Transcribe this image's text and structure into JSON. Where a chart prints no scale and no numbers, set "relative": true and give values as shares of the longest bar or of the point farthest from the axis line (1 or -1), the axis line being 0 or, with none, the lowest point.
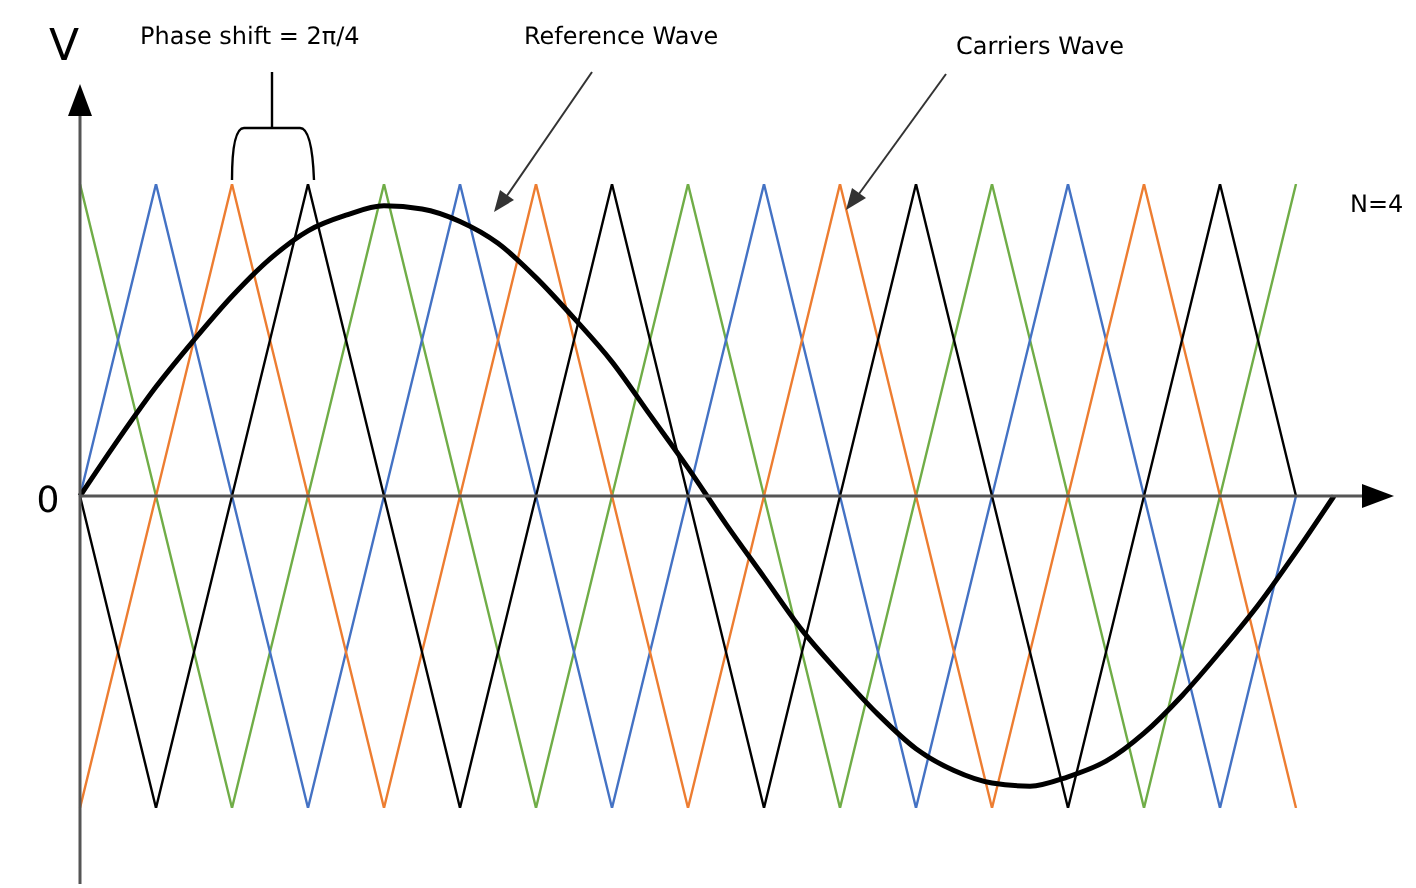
{
  "chart_data": {
    "type": "line",
    "relative": true,
    "ylabel": "V",
    "annotations": [
      "Phase shift = 2π/4",
      "Reference Wave",
      "Carriers Wave",
      "N=4",
      "0"
    ],
    "categories": [
      null,
      null,
      null,
      null,
      null,
      null,
      null,
      null,
      null,
      null,
      null,
      null,
      null,
      null,
      null,
      null,
      null,
      null,
      null,
      null,
      null,
      null,
      null,
      null,
      null,
      null,
      null,
      null,
      null,
      null,
      null,
      null,
      null,
      null
    ],
    "marker": "none",
    "line_style": "solid",
    "series": [
      {
        "color": "#70ad47",
        "values": [
          1,
          0.5,
          0,
          -0.5,
          -1,
          -0.5,
          0,
          0.5,
          1,
          0.5,
          0,
          -0.5,
          -1,
          -0.5,
          0,
          0.5,
          1,
          0.5,
          0,
          -0.5,
          -1,
          -0.5,
          0,
          0.5,
          1,
          0.5,
          0,
          -0.5,
          -1,
          -0.5,
          0,
          0.5,
          1,
          null
        ]
      },
      {
        "color": "#4472c4",
        "values": [
          0,
          0.5,
          1,
          0.5,
          0,
          -0.5,
          -1,
          -0.5,
          0,
          0.5,
          1,
          0.5,
          0,
          -0.5,
          -1,
          -0.5,
          0,
          0.5,
          1,
          0.5,
          0,
          -0.5,
          -1,
          -0.5,
          0,
          0.5,
          1,
          0.5,
          0,
          -0.5,
          -1,
          -0.5,
          0,
          null
        ]
      },
      {
        "color": "#ed7d31",
        "values": [
          -1,
          -0.5,
          0,
          0.5,
          1,
          0.5,
          0,
          -0.5,
          -1,
          -0.5,
          0,
          0.5,
          1,
          0.5,
          0,
          -0.5,
          -1,
          -0.5,
          0,
          0.5,
          1,
          0.5,
          0,
          -0.5,
          -1,
          -0.5,
          0,
          0.5,
          1,
          0.5,
          0,
          -0.5,
          -1,
          null
        ]
      },
      {
        "color": "#000000",
        "values": [
          0,
          -0.5,
          -1,
          -0.5,
          0,
          0.5,
          1,
          0.5,
          0,
          -0.5,
          -1,
          -0.5,
          0,
          0.5,
          1,
          0.5,
          0,
          -0.5,
          -1,
          -0.5,
          0,
          0.5,
          1,
          0.5,
          0,
          -0.5,
          -1,
          -0.5,
          0,
          0.5,
          1,
          0.5,
          0,
          null
        ]
      },
      {
        "color": "#000000",
        "values": [
          0,
          0.18,
          0.35,
          0.5,
          0.64,
          0.76,
          0.85,
          0.9,
          0.93,
          0.92,
          0.88,
          0.81,
          0.7,
          0.57,
          0.43,
          0.26,
          0.09,
          -0.09,
          -0.26,
          -0.43,
          -0.57,
          -0.7,
          -0.81,
          -0.88,
          -0.92,
          -0.93,
          -0.9,
          -0.85,
          -0.76,
          -0.64,
          -0.5,
          -0.35,
          -0.18,
          0
        ]
      }
    ]
  }
}
